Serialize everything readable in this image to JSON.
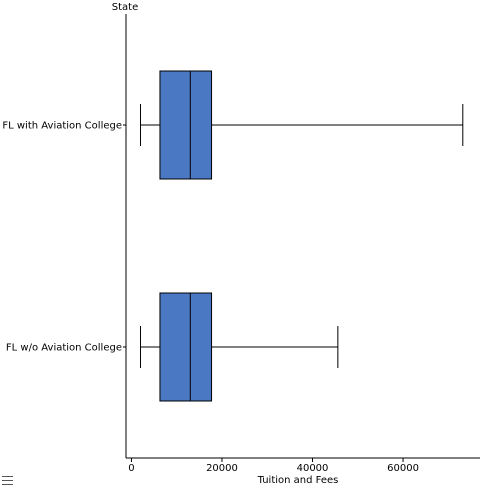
{
  "chart_data": {
    "type": "boxplot",
    "orientation": "horizontal",
    "y_axis_title": "State",
    "x_axis_title": "Tuition and Fees",
    "x_ticks": [
      0,
      20000,
      40000,
      60000
    ],
    "xlim": [
      -1200,
      77000
    ],
    "box_color": "#4a78c2",
    "categories": [
      "FL with Aviation College",
      "FL w/o Aviation College"
    ],
    "boxes": [
      {
        "label": "FL with Aviation College",
        "min": 2000,
        "q1": 6300,
        "median": 13000,
        "q3": 17700,
        "max": 73200
      },
      {
        "label": "FL w/o Aviation College",
        "min": 2000,
        "q1": 6300,
        "median": 13000,
        "q3": 17700,
        "max": 45600
      }
    ]
  },
  "toolbar": {
    "menu_icon": "hamburger-menu-icon"
  }
}
